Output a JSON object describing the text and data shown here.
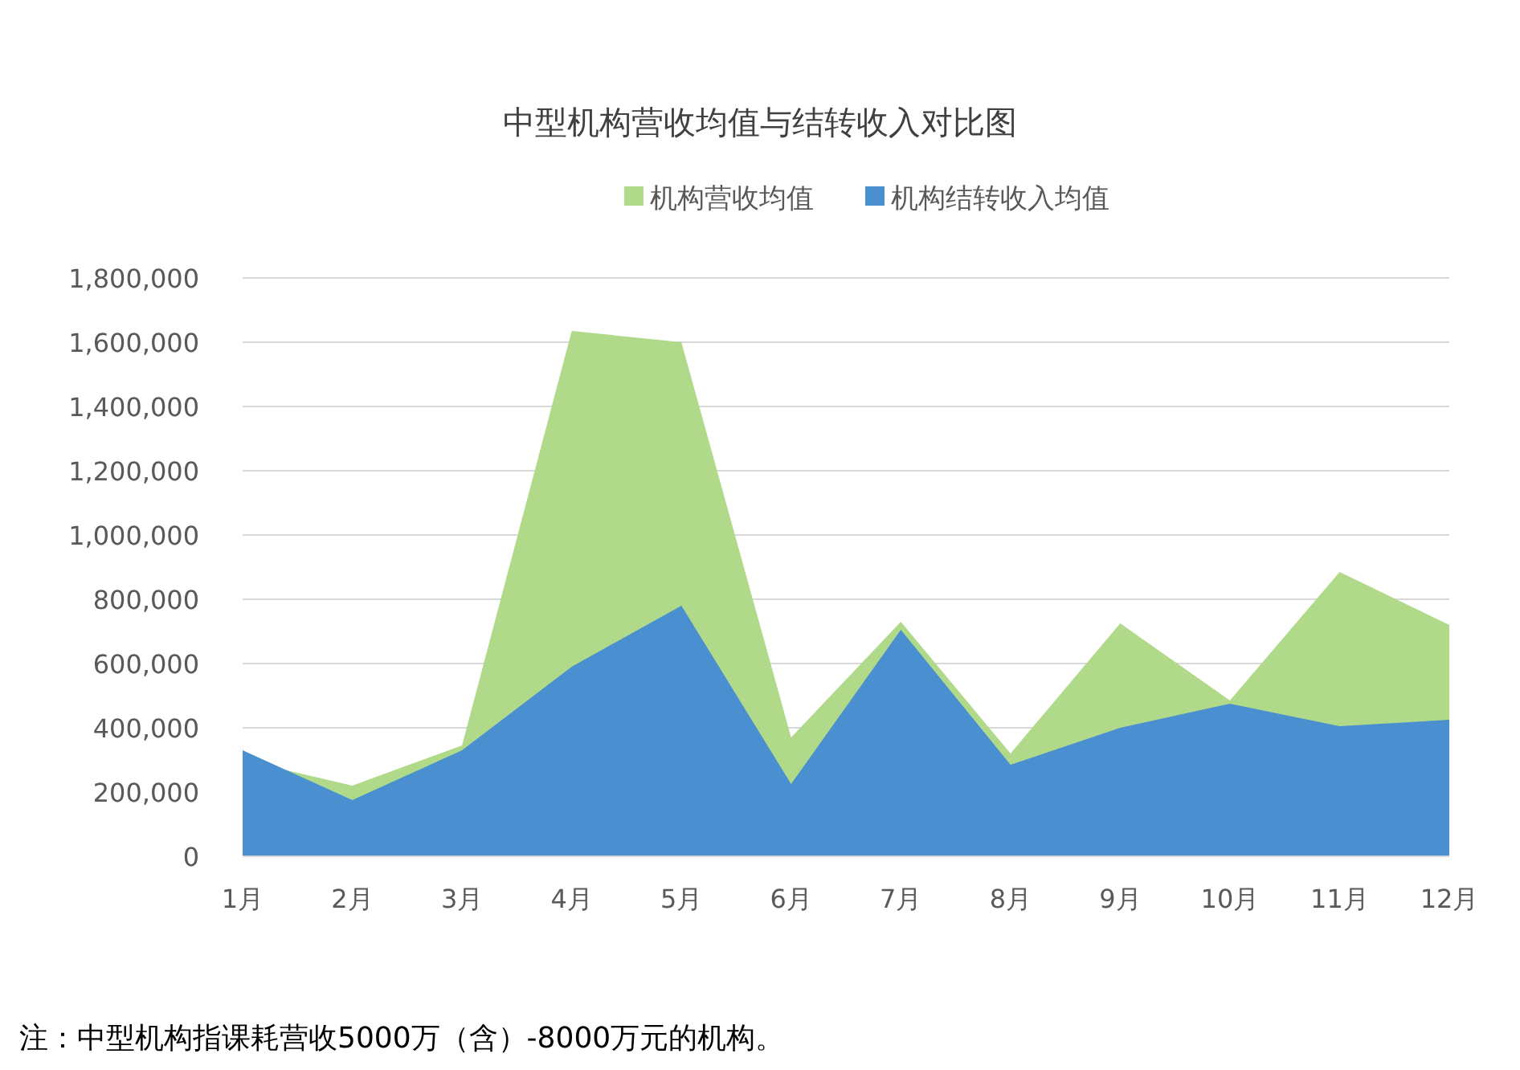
{
  "chart_data": {
    "type": "area",
    "title": "中型机构营收均值与结转收入对比图",
    "categories": [
      "1月",
      "2月",
      "3月",
      "4月",
      "5月",
      "6月",
      "7月",
      "8月",
      "9月",
      "10月",
      "11月",
      "12月"
    ],
    "series": [
      {
        "name": "机构营收均值",
        "color": "#b0d98a",
        "values": [
          300000,
          220000,
          345000,
          1635000,
          1600000,
          370000,
          730000,
          320000,
          725000,
          485000,
          885000,
          720000
        ]
      },
      {
        "name": "机构结转收入均值",
        "color": "#4a8fcf",
        "values": [
          330000,
          175000,
          330000,
          590000,
          780000,
          225000,
          705000,
          285000,
          400000,
          475000,
          405000,
          425000
        ]
      }
    ],
    "ylim": [
      0,
      1800000
    ],
    "yticks": [
      0,
      {
        "value": 200000,
        "label": "200,000"
      },
      {
        "value": 400000,
        "label": "400,000"
      },
      {
        "value": 600000,
        "label": "600,000"
      },
      {
        "value": 800000,
        "label": "800,000"
      },
      {
        "value": 1000000,
        "label": "1,000,000"
      },
      {
        "value": 1200000,
        "label": "1,200,000"
      },
      {
        "value": 1400000,
        "label": "1,400,000"
      },
      {
        "value": 1600000,
        "label": "1,600,000"
      },
      {
        "value": 1800000,
        "label": "1,800,000"
      }
    ],
    "grid": "y",
    "legend": "top",
    "annotations": [
      "注：中型机构指课耗营收5000万（含）-8000万元的机构。"
    ]
  }
}
